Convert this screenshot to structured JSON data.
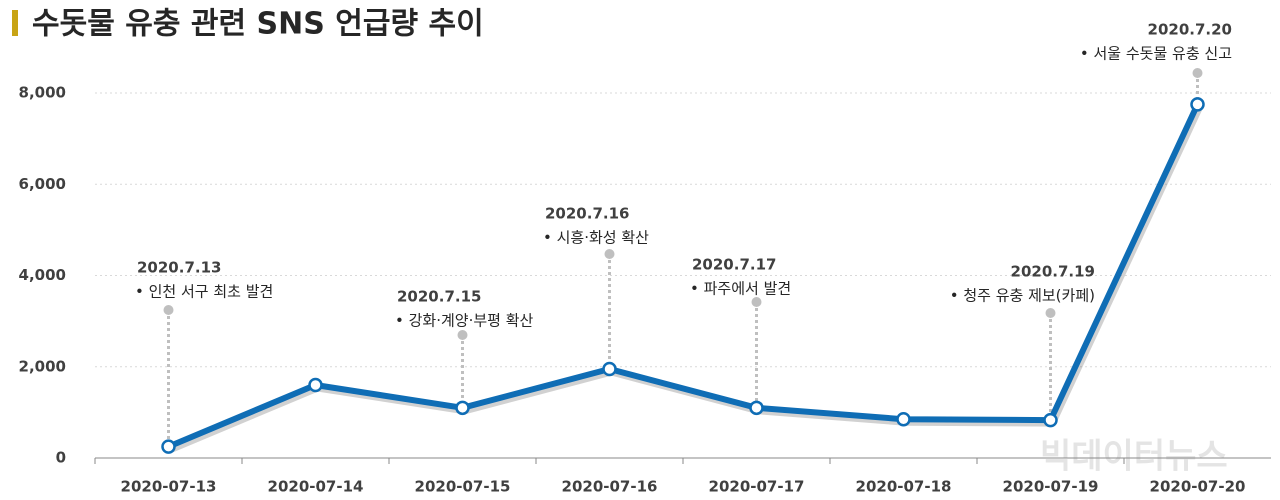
{
  "chart_data": {
    "type": "line",
    "title": "수돗물 유충 관련 SNS 언급량 추이",
    "categories": [
      "2020-07-13",
      "2020-07-14",
      "2020-07-15",
      "2020-07-16",
      "2020-07-17",
      "2020-07-18",
      "2020-07-19",
      "2020-07-20"
    ],
    "series": [
      {
        "name": "SNS 언급량",
        "color": "#0f6db5",
        "values": [
          250,
          1600,
          1100,
          1950,
          1100,
          850,
          830,
          7750
        ]
      }
    ],
    "ylim": [
      0,
      8000
    ],
    "yticks": [
      0,
      {
        "value": 2000,
        "label": "2,000"
      },
      {
        "value": 4000,
        "label": "4,000"
      },
      {
        "value": 6000,
        "label": "6,000"
      },
      {
        "value": 8000,
        "label": "8,000"
      }
    ],
    "grid": true,
    "annotations": [
      {
        "date": "2020.7.13",
        "text": "• 인천 서구 최초 발견"
      },
      {
        "date": "2020.7.15",
        "text": "• 강화·계양·부평 확산"
      },
      {
        "date": "2020.7.16",
        "text": "• 시흥·화성 확산"
      },
      {
        "date": "2020.7.17",
        "text": "• 파주에서 발견"
      },
      {
        "date": "2020.7.19",
        "text": "• 청주 유충 제보(카페)"
      },
      {
        "date": "2020.7.20",
        "text": "• 서울 수돗물 유충 신고"
      }
    ],
    "watermark": "빅데이터뉴스"
  }
}
